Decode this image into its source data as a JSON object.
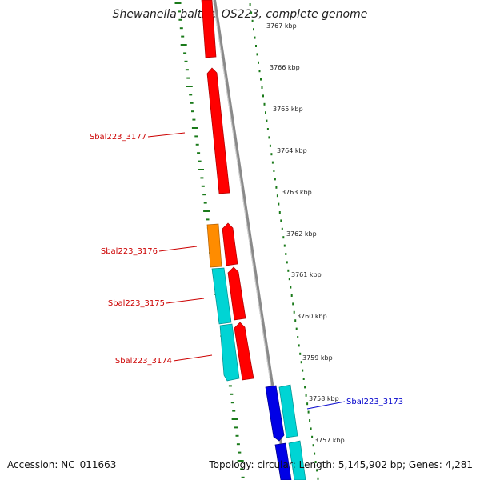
{
  "title": "Shewanella baltica OS223, complete genome",
  "accession": "Accession: NC_011663",
  "summary": "Topology: circular; Length: 5,145,902 bp; Genes: 4,281",
  "colors": {
    "red_gene": "#ff0000",
    "orange_gene": "#ff8c00",
    "cyan_gene": "#00d4d4",
    "blue_gene": "#0000e6",
    "tick_green": "#1a7a1a",
    "label_red": "#cc0000",
    "label_blue": "#0000cc",
    "backbone": "#8a8a8a"
  },
  "kbp_labels": [
    "3767 kbp",
    "3766 kbp",
    "3765 kbp",
    "3764 kbp",
    "3763 kbp",
    "3762 kbp",
    "3761 kbp",
    "3760 kbp",
    "3759 kbp",
    "3758 kbp",
    "3757 kbp"
  ],
  "gene_labels": [
    "Sbal223_3177",
    "Sbal223_3176",
    "Sbal223_3175",
    "Sbal223_3174",
    "Sbal223_3173"
  ]
}
